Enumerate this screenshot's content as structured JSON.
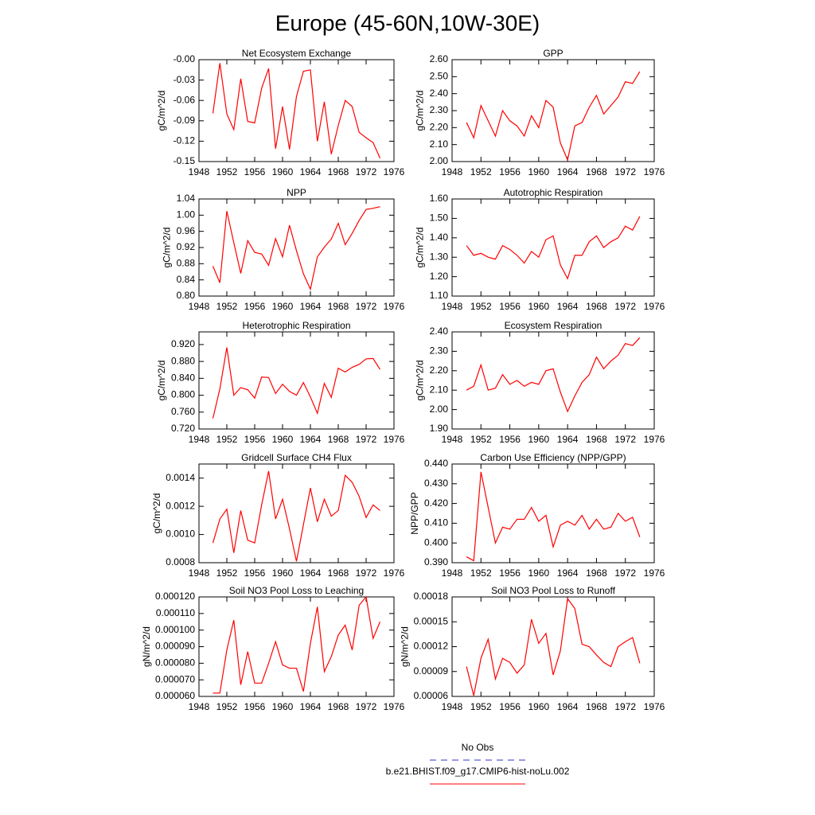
{
  "title": "Europe (45-60N,10W-30E)",
  "legend": [
    {
      "name": "No Obs",
      "color": "#3333cc",
      "dash": true
    },
    {
      "name": "b.e21.BHIST.f09_g17.CMIP6-hist-noLu.002",
      "color": "#ff0000",
      "dash": false
    }
  ],
  "chart_data": [
    {
      "type": "line",
      "title": "Net Ecosystem Exchange",
      "ylabel": "gC/m^2/d",
      "color": "#ff0000",
      "x": [
        1950,
        1951,
        1952,
        1953,
        1954,
        1955,
        1956,
        1957,
        1958,
        1959,
        1960,
        1961,
        1962,
        1963,
        1964,
        1965,
        1966,
        1967,
        1968,
        1969,
        1970,
        1971,
        1972,
        1973,
        1974
      ],
      "values": [
        -0.079,
        -0.005,
        -0.08,
        -0.103,
        -0.028,
        -0.091,
        -0.093,
        -0.042,
        -0.013,
        -0.131,
        -0.069,
        -0.132,
        -0.054,
        -0.017,
        -0.015,
        -0.12,
        -0.062,
        -0.139,
        -0.097,
        -0.06,
        -0.069,
        -0.107,
        -0.115,
        -0.122,
        -0.145
      ],
      "xlim": [
        1948,
        1976
      ],
      "xticks": [
        1948,
        1952,
        1956,
        1960,
        1964,
        1968,
        1972,
        1976
      ],
      "ylim": [
        -0.15,
        0
      ],
      "yticks": [
        {
          "value": 0,
          "label": "-0.00"
        },
        -0.03,
        -0.06,
        -0.09,
        -0.12,
        -0.15
      ]
    },
    {
      "type": "line",
      "title": "GPP",
      "ylabel": "gC/m^2/d",
      "color": "#ff0000",
      "x": [
        1950,
        1951,
        1952,
        1953,
        1954,
        1955,
        1956,
        1957,
        1958,
        1959,
        1960,
        1961,
        1962,
        1963,
        1964,
        1965,
        1966,
        1967,
        1968,
        1969,
        1970,
        1971,
        1972,
        1973,
        1974
      ],
      "values": [
        2.23,
        2.14,
        2.33,
        2.24,
        2.15,
        2.3,
        2.24,
        2.21,
        2.15,
        2.27,
        2.2,
        2.36,
        2.32,
        2.11,
        2.01,
        2.21,
        2.23,
        2.32,
        2.39,
        2.28,
        2.33,
        2.38,
        2.47,
        2.46,
        2.53
      ],
      "xlim": [
        1948,
        1976
      ],
      "xticks": [
        1948,
        1952,
        1956,
        1960,
        1964,
        1968,
        1972,
        1976
      ],
      "ylim": [
        2.0,
        2.6
      ],
      "yticks": [
        {
          "value": 2.0,
          "label": "2.00"
        },
        {
          "value": 2.1,
          "label": "2.10"
        },
        {
          "value": 2.2,
          "label": "2.20"
        },
        {
          "value": 2.3,
          "label": "2.30"
        },
        {
          "value": 2.4,
          "label": "2.40"
        },
        {
          "value": 2.5,
          "label": "2.50"
        },
        {
          "value": 2.6,
          "label": "2.60"
        }
      ]
    },
    {
      "type": "line",
      "title": "NPP",
      "ylabel": "gC/m^2/d",
      "color": "#ff0000",
      "x": [
        1950,
        1951,
        1952,
        1953,
        1954,
        1955,
        1956,
        1957,
        1958,
        1959,
        1960,
        1961,
        1962,
        1963,
        1964,
        1965,
        1966,
        1967,
        1968,
        1969,
        1970,
        1971,
        1972,
        1973,
        1974
      ],
      "values": [
        0.874,
        0.833,
        1.01,
        0.932,
        0.856,
        0.937,
        0.908,
        0.904,
        0.876,
        0.942,
        0.897,
        0.975,
        0.912,
        0.855,
        0.817,
        0.897,
        0.921,
        0.941,
        0.98,
        0.927,
        0.955,
        0.987,
        1.014,
        1.017,
        1.021
      ],
      "xlim": [
        1948,
        1976
      ],
      "xticks": [
        1948,
        1952,
        1956,
        1960,
        1964,
        1968,
        1972,
        1976
      ],
      "ylim": [
        0.8,
        1.04
      ],
      "yticks": [
        {
          "value": 0.8,
          "label": "0.80"
        },
        0.84,
        0.88,
        0.92,
        0.96,
        {
          "value": 1.0,
          "label": "1.00"
        },
        1.04
      ]
    },
    {
      "type": "line",
      "title": "Autotrophic Respiration",
      "ylabel": "gC/m^2/d",
      "color": "#ff0000",
      "x": [
        1950,
        1951,
        1952,
        1953,
        1954,
        1955,
        1956,
        1957,
        1958,
        1959,
        1960,
        1961,
        1962,
        1963,
        1964,
        1965,
        1966,
        1967,
        1968,
        1969,
        1970,
        1971,
        1972,
        1973,
        1974
      ],
      "values": [
        1.36,
        1.31,
        1.32,
        1.3,
        1.29,
        1.36,
        1.34,
        1.31,
        1.27,
        1.33,
        1.3,
        1.39,
        1.41,
        1.26,
        1.19,
        1.31,
        1.31,
        1.38,
        1.41,
        1.35,
        1.38,
        1.4,
        1.46,
        1.44,
        1.51
      ],
      "xlim": [
        1948,
        1976
      ],
      "xticks": [
        1948,
        1952,
        1956,
        1960,
        1964,
        1968,
        1972,
        1976
      ],
      "ylim": [
        1.1,
        1.6
      ],
      "yticks": [
        {
          "value": 1.1,
          "label": "1.10"
        },
        {
          "value": 1.2,
          "label": "1.20"
        },
        {
          "value": 1.3,
          "label": "1.30"
        },
        {
          "value": 1.4,
          "label": "1.40"
        },
        {
          "value": 1.5,
          "label": "1.50"
        },
        {
          "value": 1.6,
          "label": "1.60"
        }
      ]
    },
    {
      "type": "line",
      "title": "Heterotrophic Respiration",
      "ylabel": "gC/m^2/d",
      "color": "#ff0000",
      "x": [
        1950,
        1951,
        1952,
        1953,
        1954,
        1955,
        1956,
        1957,
        1958,
        1959,
        1960,
        1961,
        1962,
        1963,
        1964,
        1965,
        1966,
        1967,
        1968,
        1969,
        1970,
        1971,
        1972,
        1973,
        1974
      ],
      "values": [
        0.745,
        0.815,
        0.913,
        0.8,
        0.818,
        0.813,
        0.793,
        0.843,
        0.842,
        0.804,
        0.826,
        0.809,
        0.8,
        0.83,
        0.796,
        0.757,
        0.828,
        0.795,
        0.864,
        0.855,
        0.866,
        0.873,
        0.886,
        0.887,
        0.861
      ],
      "xlim": [
        1948,
        1976
      ],
      "xticks": [
        1948,
        1952,
        1956,
        1960,
        1964,
        1968,
        1972,
        1976
      ],
      "ylim": [
        0.72,
        0.95
      ],
      "yticks": [
        {
          "value": 0.72,
          "label": "0.720"
        },
        {
          "value": 0.76,
          "label": "0.760"
        },
        {
          "value": 0.8,
          "label": "0.800"
        },
        {
          "value": 0.84,
          "label": "0.840"
        },
        {
          "value": 0.88,
          "label": "0.880"
        },
        {
          "value": 0.92,
          "label": "0.920"
        }
      ]
    },
    {
      "type": "line",
      "title": "Ecosystem Respiration",
      "ylabel": "gC/m^2/d",
      "color": "#ff0000",
      "x": [
        1950,
        1951,
        1952,
        1953,
        1954,
        1955,
        1956,
        1957,
        1958,
        1959,
        1960,
        1961,
        1962,
        1963,
        1964,
        1965,
        1966,
        1967,
        1968,
        1969,
        1970,
        1971,
        1972,
        1973,
        1974
      ],
      "values": [
        2.1,
        2.12,
        2.23,
        2.1,
        2.11,
        2.18,
        2.13,
        2.15,
        2.12,
        2.14,
        2.13,
        2.2,
        2.21,
        2.09,
        1.99,
        2.07,
        2.14,
        2.18,
        2.27,
        2.21,
        2.25,
        2.28,
        2.34,
        2.33,
        2.37
      ],
      "xlim": [
        1948,
        1976
      ],
      "xticks": [
        1948,
        1952,
        1956,
        1960,
        1964,
        1968,
        1972,
        1976
      ],
      "ylim": [
        1.9,
        2.4
      ],
      "yticks": [
        {
          "value": 1.9,
          "label": "1.90"
        },
        {
          "value": 2.0,
          "label": "2.00"
        },
        {
          "value": 2.1,
          "label": "2.10"
        },
        {
          "value": 2.2,
          "label": "2.20"
        },
        {
          "value": 2.3,
          "label": "2.30"
        },
        {
          "value": 2.4,
          "label": "2.40"
        }
      ]
    },
    {
      "type": "line",
      "title": "Gridcell Surface CH4 Flux",
      "ylabel": "gC/m^2/d",
      "color": "#ff0000",
      "x": [
        1950,
        1951,
        1952,
        1953,
        1954,
        1955,
        1956,
        1957,
        1958,
        1959,
        1960,
        1961,
        1962,
        1963,
        1964,
        1965,
        1966,
        1967,
        1968,
        1969,
        1970,
        1971,
        1972,
        1973,
        1974
      ],
      "values": [
        0.00094,
        0.00111,
        0.00118,
        0.00087,
        0.00117,
        0.00096,
        0.00094,
        0.00121,
        0.00145,
        0.00111,
        0.00125,
        0.00104,
        0.00081,
        0.00107,
        0.00133,
        0.00109,
        0.00125,
        0.00113,
        0.00117,
        0.00142,
        0.00137,
        0.00127,
        0.00112,
        0.00121,
        0.00117
      ],
      "xlim": [
        1948,
        1976
      ],
      "xticks": [
        1948,
        1952,
        1956,
        1960,
        1964,
        1968,
        1972,
        1976
      ],
      "ylim": [
        0.0008,
        0.0015
      ],
      "yticks": [
        0.0008,
        {
          "value": 0.001,
          "label": "0.0010"
        },
        0.0012,
        0.0014
      ]
    },
    {
      "type": "line",
      "title": "Carbon Use Efficiency (NPP/GPP)",
      "ylabel": "NPP/GPP",
      "color": "#ff0000",
      "x": [
        1950,
        1951,
        1952,
        1953,
        1954,
        1955,
        1956,
        1957,
        1958,
        1959,
        1960,
        1961,
        1962,
        1963,
        1964,
        1965,
        1966,
        1967,
        1968,
        1969,
        1970,
        1971,
        1972,
        1973,
        1974
      ],
      "values": [
        0.393,
        0.391,
        0.436,
        0.418,
        0.4,
        0.408,
        0.407,
        0.412,
        0.412,
        0.418,
        0.411,
        0.414,
        0.398,
        0.409,
        0.411,
        0.409,
        0.414,
        0.407,
        0.412,
        0.407,
        0.408,
        0.415,
        0.411,
        0.413,
        0.403
      ],
      "xlim": [
        1948,
        1976
      ],
      "xticks": [
        1948,
        1952,
        1956,
        1960,
        1964,
        1968,
        1972,
        1976
      ],
      "ylim": [
        0.39,
        0.44
      ],
      "yticks": [
        {
          "value": 0.39,
          "label": "0.390"
        },
        {
          "value": 0.4,
          "label": "0.400"
        },
        {
          "value": 0.41,
          "label": "0.410"
        },
        {
          "value": 0.42,
          "label": "0.420"
        },
        {
          "value": 0.43,
          "label": "0.430"
        },
        {
          "value": 0.44,
          "label": "0.440"
        }
      ]
    },
    {
      "type": "line",
      "title": "Soil NO3 Pool Loss to Leaching",
      "ylabel": "gN/m^2/d",
      "color": "#ff0000",
      "x": [
        1950,
        1951,
        1952,
        1953,
        1954,
        1955,
        1956,
        1957,
        1958,
        1959,
        1960,
        1961,
        1962,
        1963,
        1964,
        1965,
        1966,
        1967,
        1968,
        1969,
        1970,
        1971,
        1972,
        1973,
        1974
      ],
      "values": [
        6.2e-05,
        6.2e-05,
        8.8e-05,
        0.000106,
        6.7e-05,
        8.7e-05,
        6.8e-05,
        6.8e-05,
        8e-05,
        9.3e-05,
        7.9e-05,
        7.7e-05,
        7.7e-05,
        6.3e-05,
        9.2e-05,
        0.000114,
        7.5e-05,
        8.4e-05,
        9.7e-05,
        0.000103,
        8.8e-05,
        0.000115,
        0.00012,
        9.5e-05,
        0.000105
      ],
      "xlim": [
        1948,
        1976
      ],
      "xticks": [
        1948,
        1952,
        1956,
        1960,
        1964,
        1968,
        1972,
        1976
      ],
      "ylim": [
        6e-05,
        0.00012
      ],
      "yticks": [
        {
          "value": 6e-05,
          "label": "0.000060"
        },
        {
          "value": 7e-05,
          "label": "0.000070"
        },
        {
          "value": 8e-05,
          "label": "0.000080"
        },
        {
          "value": 9e-05,
          "label": "0.000090"
        },
        {
          "value": 0.0001,
          "label": "0.000100"
        },
        {
          "value": 0.00011,
          "label": "0.000110"
        },
        {
          "value": 0.00012,
          "label": "0.000120"
        }
      ]
    },
    {
      "type": "line",
      "title": "Soil NO3 Pool Loss to Runoff",
      "ylabel": "gN/m^2/d",
      "color": "#ff0000",
      "x": [
        1950,
        1951,
        1952,
        1953,
        1954,
        1955,
        1956,
        1957,
        1958,
        1959,
        1960,
        1961,
        1962,
        1963,
        1964,
        1965,
        1966,
        1967,
        1968,
        1969,
        1970,
        1971,
        1972,
        1973,
        1974
      ],
      "values": [
        9.6e-05,
        6.1e-05,
        0.000106,
        0.000129,
        8.1e-05,
        0.000106,
        0.000101,
        8.8e-05,
        9.8e-05,
        0.000153,
        0.000124,
        0.000136,
        8.6e-05,
        0.000115,
        0.000178,
        0.000166,
        0.000123,
        0.00012,
        0.00011,
        0.000101,
        9.6e-05,
        0.00012,
        0.000126,
        0.000131,
        0.0001
      ],
      "xlim": [
        1948,
        1976
      ],
      "xticks": [
        1948,
        1952,
        1956,
        1960,
        1964,
        1968,
        1972,
        1976
      ],
      "ylim": [
        6e-05,
        0.00018
      ],
      "yticks": [
        {
          "value": 6e-05,
          "label": "0.00006"
        },
        {
          "value": 9e-05,
          "label": "0.00009"
        },
        {
          "value": 0.00012,
          "label": "0.00012"
        },
        {
          "value": 0.00015,
          "label": "0.00015"
        },
        {
          "value": 0.00018,
          "label": "0.00018"
        }
      ]
    }
  ]
}
